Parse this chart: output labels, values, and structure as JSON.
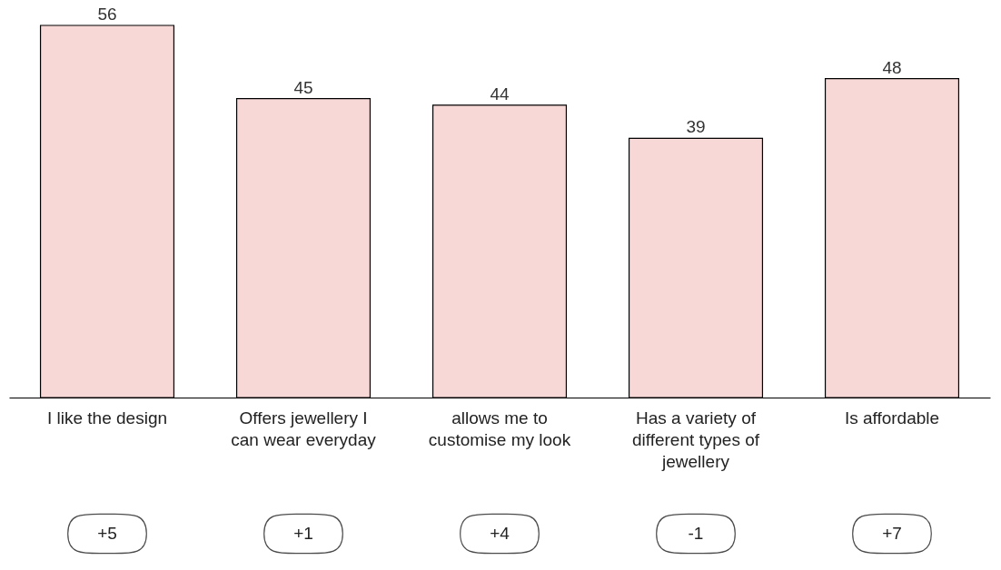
{
  "chart_data": {
    "type": "bar",
    "categories": [
      "I like the design",
      "Offers jewellery I can wear everyday",
      "allows me to customise my look",
      "Has a variety of different types of jewellery",
      "Is affordable"
    ],
    "values": [
      56,
      45,
      44,
      39,
      48
    ],
    "color": "#f8d7d7",
    "data_labels": true,
    "annotations": [
      "+5",
      "+1",
      "+4",
      "-1",
      "+7"
    ]
  }
}
